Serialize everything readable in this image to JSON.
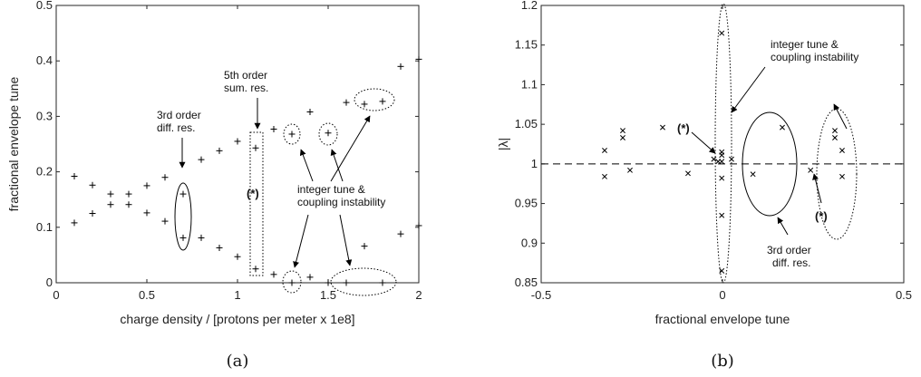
{
  "chart_data": [
    {
      "id": "a",
      "type": "scatter",
      "panel_label": "(a)",
      "xlabel": "charge density / [protons per meter x 1e8]",
      "ylabel": "fractional envelope tune",
      "xlim": [
        0,
        2
      ],
      "ylim": [
        0,
        0.5
      ],
      "xticks": [
        0,
        0.5,
        1,
        1.5,
        2
      ],
      "xtick_labels": [
        "0",
        "0.5",
        "1",
        "1.5",
        "2"
      ],
      "yticks": [
        0,
        0.1,
        0.2,
        0.3,
        0.4,
        0.5
      ],
      "ytick_labels": [
        "0",
        "0.1",
        "0.2",
        "0.3",
        "0.4",
        "0.5"
      ],
      "marker": "+",
      "points": [
        [
          0.1,
          0.192
        ],
        [
          0.1,
          0.108
        ],
        [
          0.2,
          0.176
        ],
        [
          0.2,
          0.125
        ],
        [
          0.3,
          0.16
        ],
        [
          0.3,
          0.141
        ],
        [
          0.4,
          0.16
        ],
        [
          0.4,
          0.141
        ],
        [
          0.5,
          0.175
        ],
        [
          0.5,
          0.126
        ],
        [
          0.6,
          0.19
        ],
        [
          0.6,
          0.111
        ],
        [
          0.7,
          0.16
        ],
        [
          0.7,
          0.081
        ],
        [
          0.8,
          0.222
        ],
        [
          0.8,
          0.081
        ],
        [
          0.9,
          0.238
        ],
        [
          0.9,
          0.063
        ],
        [
          1.0,
          0.255
        ],
        [
          1.0,
          0.047
        ],
        [
          1.1,
          0.243
        ],
        [
          1.1,
          0.025
        ],
        [
          1.2,
          0.277
        ],
        [
          1.2,
          0.015
        ],
        [
          1.3,
          0.268
        ],
        [
          1.3,
          0.0
        ],
        [
          1.4,
          0.308
        ],
        [
          1.4,
          0.01
        ],
        [
          1.5,
          0.27
        ],
        [
          1.5,
          0.0
        ],
        [
          1.6,
          0.325
        ],
        [
          1.6,
          0.0
        ],
        [
          1.7,
          0.322
        ],
        [
          1.7,
          0.066
        ],
        [
          1.8,
          0.327
        ],
        [
          1.8,
          0.0
        ],
        [
          1.9,
          0.39
        ],
        [
          1.9,
          0.088
        ],
        [
          2.0,
          0.403
        ],
        [
          2.0,
          0.103
        ]
      ],
      "annotations": [
        {
          "lines": [
            "3rd order",
            "diff. res."
          ]
        },
        {
          "lines": [
            "5th order",
            "sum. res."
          ]
        },
        {
          "lines": [
            "(*)"
          ],
          "bold": true
        },
        {
          "lines": [
            "integer tune &",
            "coupling instability"
          ]
        }
      ]
    },
    {
      "id": "b",
      "type": "scatter",
      "panel_label": "(b)",
      "xlabel": "fractional envelope tune",
      "ylabel": "|λ|",
      "xlim": [
        -0.5,
        0.5
      ],
      "ylim": [
        0.85,
        1.2
      ],
      "xticks": [
        -0.5,
        0,
        0.5
      ],
      "xtick_labels": [
        "-0.5",
        "0",
        "0.5"
      ],
      "yticks": [
        0.85,
        0.9,
        0.95,
        1.0,
        1.05,
        1.1,
        1.15,
        1.2
      ],
      "ytick_labels": [
        "0.85",
        "0.9",
        "0.95",
        "1",
        "1.05",
        "1.1",
        "1.15",
        "1.2"
      ],
      "marker": "x",
      "reference_line_y": 1.0,
      "points": [
        [
          -0.325,
          1.017
        ],
        [
          -0.325,
          0.984
        ],
        [
          -0.275,
          1.042
        ],
        [
          -0.275,
          1.033
        ],
        [
          -0.255,
          0.992
        ],
        [
          -0.165,
          1.046
        ],
        [
          -0.095,
          0.988
        ],
        [
          -0.024,
          1.006
        ],
        [
          -0.012,
          1.003
        ],
        [
          -0.002,
          1.165
        ],
        [
          -0.002,
          1.015
        ],
        [
          -0.002,
          1.011
        ],
        [
          -0.002,
          1.003
        ],
        [
          -0.002,
          0.982
        ],
        [
          -0.002,
          0.935
        ],
        [
          -0.002,
          0.865
        ],
        [
          0.025,
          1.006
        ],
        [
          0.084,
          0.987
        ],
        [
          0.165,
          1.046
        ],
        [
          0.243,
          0.992
        ],
        [
          0.31,
          1.042
        ],
        [
          0.31,
          1.033
        ],
        [
          0.33,
          1.017
        ],
        [
          0.33,
          0.984
        ]
      ],
      "annotations": [
        {
          "lines": [
            "integer tune &",
            "coupling instability"
          ]
        },
        {
          "lines": [
            "(*)"
          ],
          "bold": true
        },
        {
          "lines": [
            "(*)"
          ],
          "bold": true
        },
        {
          "lines": [
            "3rd order",
            "diff. res."
          ]
        }
      ]
    }
  ]
}
